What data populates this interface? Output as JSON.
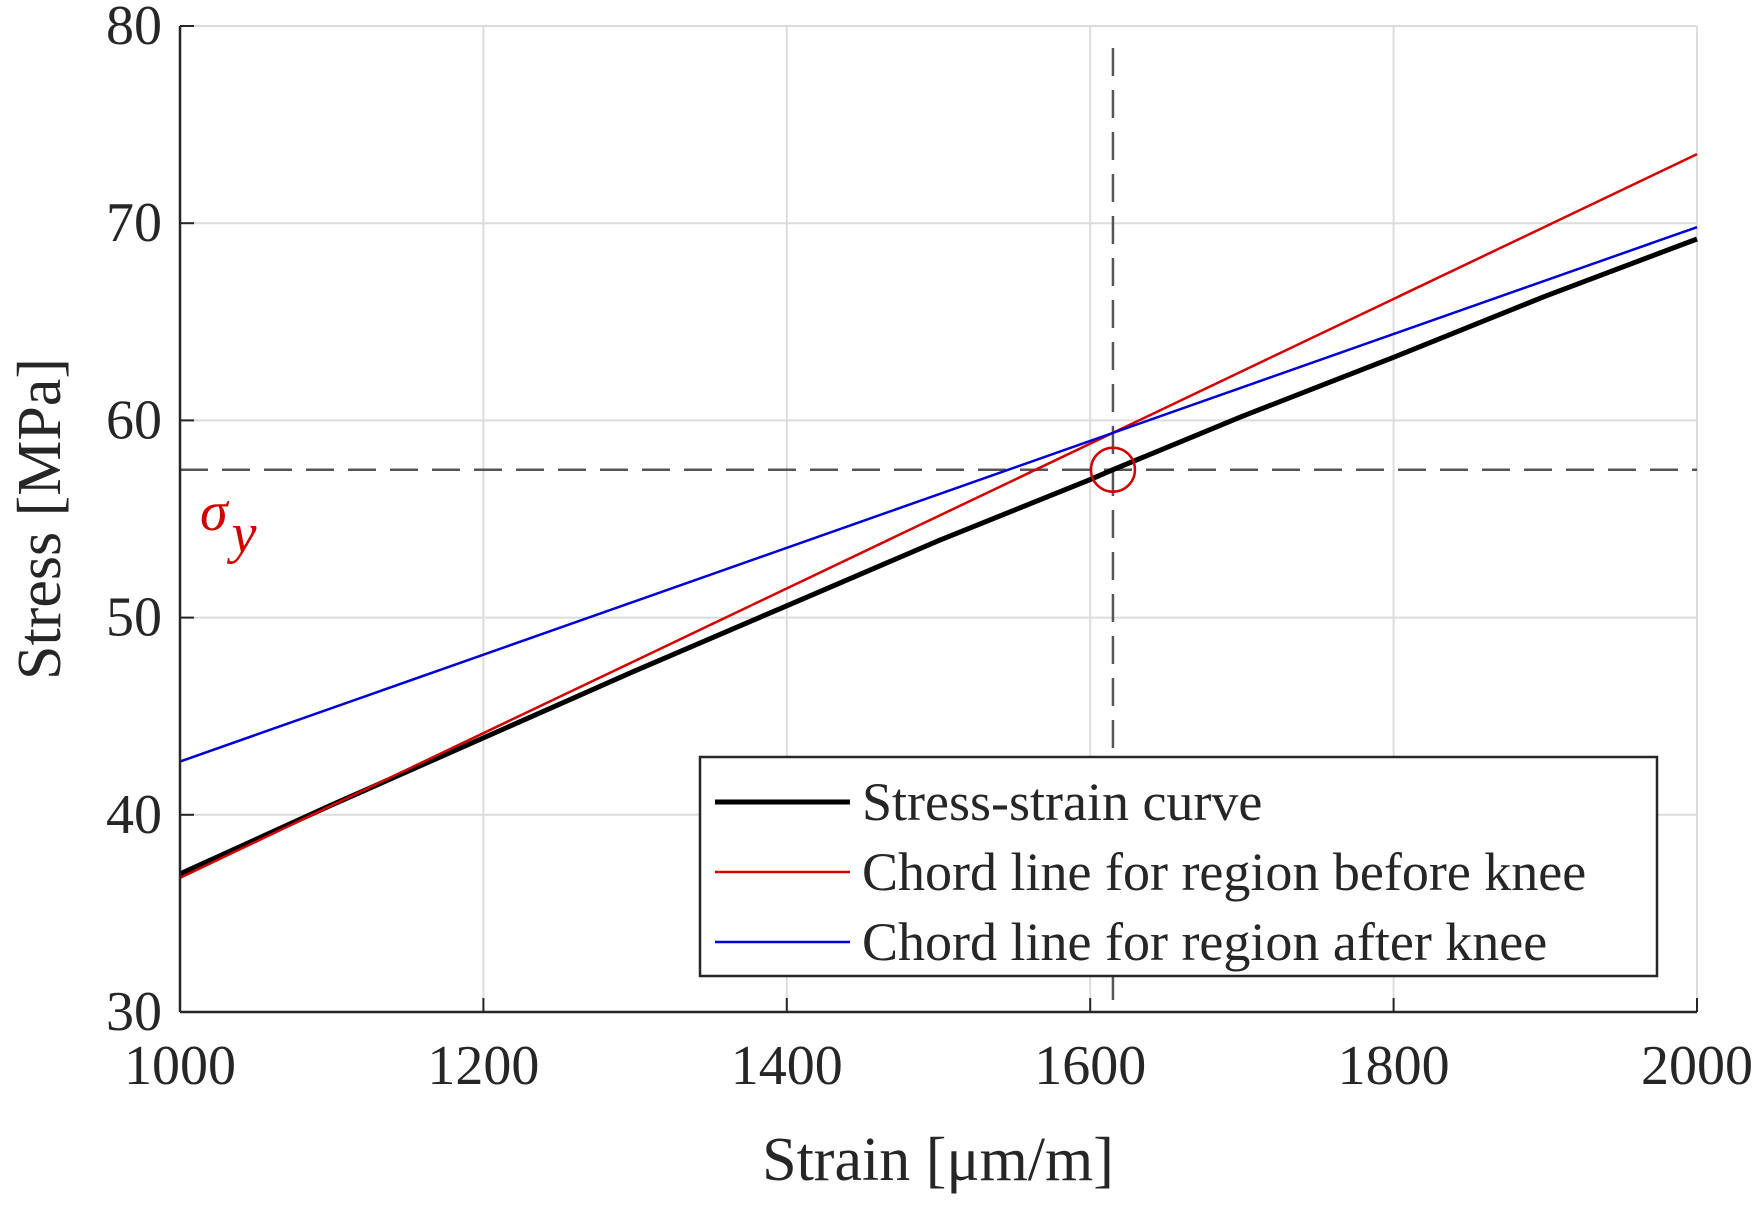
{
  "chart_data": {
    "type": "line",
    "xlabel": "Strain [μm/m]",
    "ylabel": "Stress [MPa]",
    "xlim": [
      1000,
      2000
    ],
    "ylim": [
      30,
      80
    ],
    "xticks": [
      1000,
      1200,
      1400,
      1600,
      1800,
      2000
    ],
    "yticks": [
      30,
      40,
      50,
      60,
      70,
      80
    ],
    "grid": true,
    "legend_position": "bottom-right",
    "series": [
      {
        "name": "Stress-strain curve",
        "color": "#000000",
        "x": [
          1000,
          1100,
          1200,
          1300,
          1400,
          1500,
          1600,
          1615,
          1700,
          1800,
          1900,
          2000
        ],
        "y": [
          37.0,
          40.5,
          43.9,
          47.3,
          50.6,
          53.9,
          57.0,
          57.5,
          60.2,
          63.2,
          66.3,
          69.2
        ]
      },
      {
        "name": "Chord line for region before knee",
        "color": "#d40000",
        "x": [
          1000,
          2000
        ],
        "y": [
          36.8,
          73.5
        ]
      },
      {
        "name": "Chord line for region after knee",
        "color": "#0000d4",
        "x": [
          1000,
          2000
        ],
        "y": [
          42.7,
          69.8
        ]
      }
    ],
    "annotations": {
      "yield_point": {
        "x": 1615,
        "y": 57.5,
        "label": "σ",
        "subscript": "y",
        "color": "#d40000"
      }
    }
  }
}
